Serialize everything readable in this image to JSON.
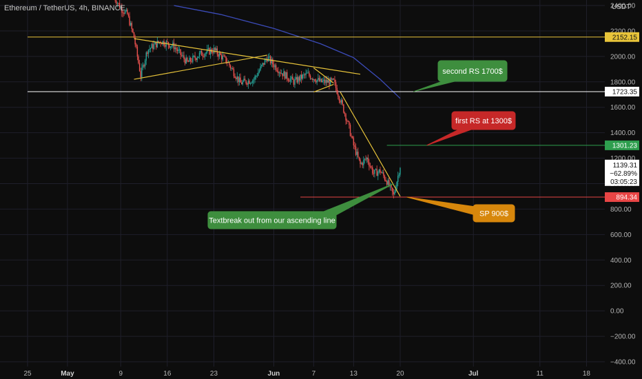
{
  "header": {
    "title": "Ethereum / TetherUS, 4h, BINANCE",
    "currency": "USDT"
  },
  "colors": {
    "background": "#0d0d0d",
    "grid": "#1f1f2b",
    "up": "#26a69a",
    "down": "#ef5350",
    "trendline": "#e8c43a",
    "ma": "#3b4bb8",
    "green_note": "#3e8e3e",
    "red_note": "#c62828",
    "orange_note": "#d7870c"
  },
  "chart_data": {
    "type": "candlestick",
    "ylim": [
      -400,
      2400
    ],
    "y_ticks": [
      "2400.00",
      "2200.00",
      "2000.00",
      "1800.00",
      "1600.00",
      "1400.00",
      "1200.00",
      "1000.00",
      "800.00",
      "600.00",
      "400.00",
      "200.00",
      "0.00",
      "−200.00",
      "−400.00"
    ],
    "x_ticks": [
      {
        "label": "25",
        "date": "2022-04-25",
        "bold": false
      },
      {
        "label": "May",
        "date": "2022-05-01",
        "bold": true
      },
      {
        "label": "9",
        "date": "2022-05-09",
        "bold": false
      },
      {
        "label": "16",
        "date": "2022-05-16",
        "bold": false
      },
      {
        "label": "23",
        "date": "2022-05-23",
        "bold": false
      },
      {
        "label": "Jun",
        "date": "2022-06-01",
        "bold": true
      },
      {
        "label": "7",
        "date": "2022-06-07",
        "bold": false
      },
      {
        "label": "13",
        "date": "2022-06-13",
        "bold": false
      },
      {
        "label": "20",
        "date": "2022-06-20",
        "bold": false
      },
      {
        "label": "Jul",
        "date": "2022-07-01",
        "bold": true
      },
      {
        "label": "11",
        "date": "2022-07-11",
        "bold": false
      },
      {
        "label": "18",
        "date": "2022-07-18",
        "bold": false
      }
    ],
    "price_path": [
      {
        "date": "2022-05-08",
        "price": 2470
      },
      {
        "date": "2022-05-09",
        "price": 2380
      },
      {
        "date": "2022-05-10",
        "price": 2330
      },
      {
        "date": "2022-05-11",
        "price": 2150
      },
      {
        "date": "2022-05-12",
        "price": 1850
      },
      {
        "date": "2022-05-13",
        "price": 2050
      },
      {
        "date": "2022-05-15",
        "price": 2120
      },
      {
        "date": "2022-05-17",
        "price": 2080
      },
      {
        "date": "2022-05-19",
        "price": 1950
      },
      {
        "date": "2022-05-21",
        "price": 2020
      },
      {
        "date": "2022-05-23",
        "price": 2050
      },
      {
        "date": "2022-05-25",
        "price": 1960
      },
      {
        "date": "2022-05-27",
        "price": 1790
      },
      {
        "date": "2022-05-29",
        "price": 1820
      },
      {
        "date": "2022-05-31",
        "price": 1990
      },
      {
        "date": "2022-06-02",
        "price": 1880
      },
      {
        "date": "2022-06-04",
        "price": 1800
      },
      {
        "date": "2022-06-06",
        "price": 1860
      },
      {
        "date": "2022-06-08",
        "price": 1800
      },
      {
        "date": "2022-06-10",
        "price": 1800
      },
      {
        "date": "2022-06-11",
        "price": 1660
      },
      {
        "date": "2022-06-12",
        "price": 1500
      },
      {
        "date": "2022-06-13",
        "price": 1300
      },
      {
        "date": "2022-06-14",
        "price": 1150
      },
      {
        "date": "2022-06-15",
        "price": 1200
      },
      {
        "date": "2022-06-16",
        "price": 1080
      },
      {
        "date": "2022-06-17",
        "price": 1100
      },
      {
        "date": "2022-06-18",
        "price": 1020
      },
      {
        "date": "2022-06-19",
        "price": 905
      },
      {
        "date": "2022-06-20",
        "price": 1139.31
      }
    ],
    "moving_average": [
      {
        "date": "2022-05-17",
        "price": 2400
      },
      {
        "date": "2022-05-24",
        "price": 2330
      },
      {
        "date": "2022-06-01",
        "price": 2220
      },
      {
        "date": "2022-06-08",
        "price": 2100
      },
      {
        "date": "2022-06-13",
        "price": 1990
      },
      {
        "date": "2022-06-17",
        "price": 1820
      },
      {
        "date": "2022-06-20",
        "price": 1670
      }
    ],
    "trendlines": [
      {
        "name": "descending-upper",
        "from": {
          "date": "2022-05-11",
          "price": 2140
        },
        "to": {
          "date": "2022-06-14",
          "price": 1860
        }
      },
      {
        "name": "ascending-lower",
        "from": {
          "date": "2022-05-11",
          "price": 1820
        },
        "to": {
          "date": "2022-05-31",
          "price": 2010
        }
      },
      {
        "name": "pennant-top",
        "from": {
          "date": "2022-06-07",
          "price": 1910
        },
        "to": {
          "date": "2022-06-10",
          "price": 1790
        }
      },
      {
        "name": "pennant-bottom",
        "from": {
          "date": "2022-06-07",
          "price": 1720
        },
        "to": {
          "date": "2022-06-10",
          "price": 1780
        }
      },
      {
        "name": "breakdown-line",
        "from": {
          "date": "2022-06-11",
          "price": 1720
        },
        "to": {
          "date": "2022-06-20",
          "price": 900
        }
      }
    ],
    "levels": [
      {
        "price": 2152.15,
        "label": "2152.15",
        "color": "#e8c43a",
        "style": "solid",
        "full_width": true
      },
      {
        "price": 1723.35,
        "label": "1723.35",
        "color": "#ffffff",
        "style": "solid",
        "full_width": true
      },
      {
        "price": 1301.23,
        "label": "1301.23",
        "color": "#2e9e4e",
        "style": "solid",
        "full_width": false
      },
      {
        "price": 894.34,
        "label": "894.34",
        "color": "#e84545",
        "style": "solid",
        "full_width": false
      }
    ],
    "last_price": {
      "value": "1139.31",
      "change": "−62.89%",
      "countdown": "03:05:23"
    },
    "annotations": [
      {
        "name": "second-rs-note",
        "text": "second RS 1700$",
        "color": "green"
      },
      {
        "name": "first-rs-note",
        "text": "first RS at 1300$",
        "color": "red"
      },
      {
        "name": "sp-note",
        "text": "SP 900$",
        "color": "orange"
      },
      {
        "name": "breakout-note",
        "text": "Textbreak out from our ascending line",
        "color": "green"
      }
    ]
  }
}
